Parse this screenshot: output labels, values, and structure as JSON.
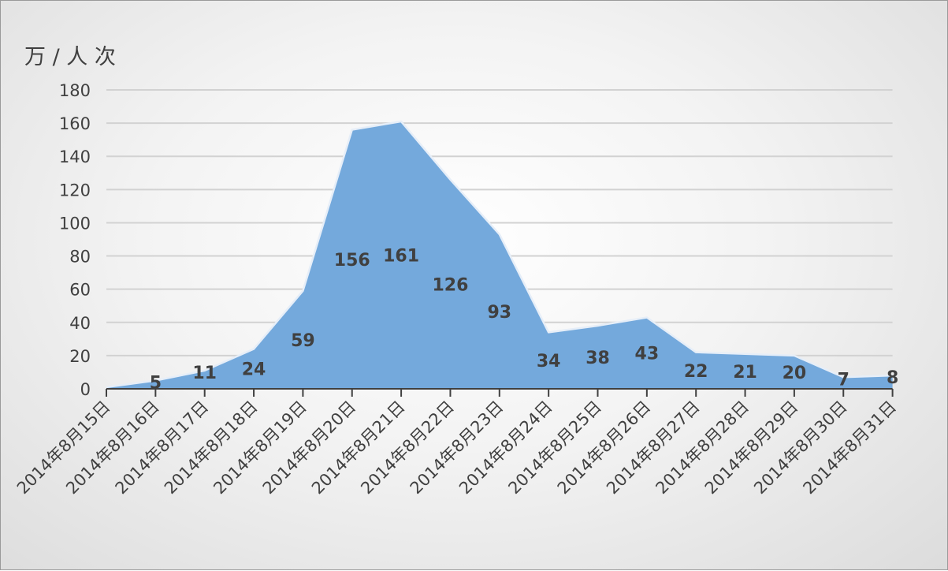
{
  "chart_data": {
    "type": "area",
    "ylabel": "万 / 人 次",
    "ylim": [
      0,
      180
    ],
    "yticks": [
      0,
      20,
      40,
      60,
      80,
      100,
      120,
      140,
      160,
      180
    ],
    "grid": true,
    "categories": [
      "2014年8月15日",
      "2014年8月16日",
      "2014年8月17日",
      "2014年8月18日",
      "2014年8月19日",
      "2014年8月20日",
      "2014年8月21日",
      "2014年8月22日",
      "2014年8月23日",
      "2014年8月24日",
      "2014年8月25日",
      "2014年8月26日",
      "2014年8月27日",
      "2014年8月28日",
      "2014年8月29日",
      "2014年8月30日",
      "2014年8月31日"
    ],
    "series": [
      {
        "values": [
          1,
          5,
          11,
          24,
          59,
          156,
          161,
          126,
          93,
          34,
          38,
          43,
          22,
          21,
          20,
          7,
          8
        ],
        "data_labels": [
          "",
          "5",
          "11",
          "24",
          "59",
          "156",
          "161",
          "126",
          "93",
          "34",
          "38",
          "43",
          "22",
          "21",
          "20",
          "7",
          "8"
        ],
        "color": "#6fa8dc"
      }
    ]
  },
  "colors": {
    "area_fill": "#74a9dc",
    "area_stroke": "#e6eef8",
    "grid": "#d2d2d2",
    "axis": "#404040"
  }
}
